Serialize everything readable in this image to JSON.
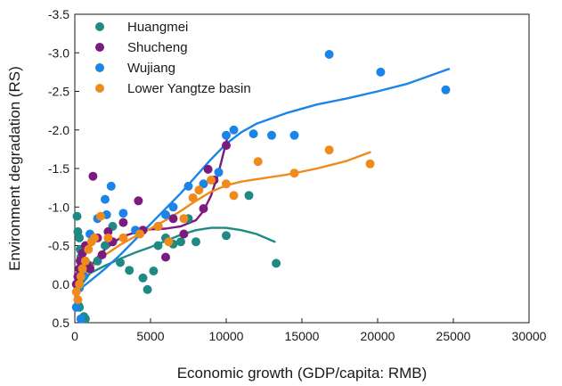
{
  "chart_data": {
    "type": "scatter",
    "title": "",
    "xlabel": "Economic growth (GDP/capita: RMB)",
    "ylabel": "Environment degradation (RS)",
    "xlim": [
      0,
      30000
    ],
    "ylim": [
      0.5,
      -3.5
    ],
    "y_axis_inverted": true,
    "x_ticks": [
      0,
      5000,
      10000,
      15000,
      20000,
      25000,
      30000
    ],
    "x_tick_labels": [
      "0",
      "5000",
      "10000",
      "15000",
      "20000",
      "25000",
      "30000"
    ],
    "y_ticks": [
      -3.5,
      -3.0,
      -2.5,
      -2.0,
      -1.5,
      -1.0,
      -0.5,
      0.0,
      0.5
    ],
    "y_tick_labels": [
      "-3.5",
      "-3.0",
      "-2.5",
      "-2.0",
      "-1.5",
      "-1.0",
      "-0.5",
      "0.0",
      "0.5"
    ],
    "grid": false,
    "legend_position": "top-left",
    "series": [
      {
        "name": "Huangmei",
        "color": "#1f8a84",
        "points": [
          [
            150,
            -0.88
          ],
          [
            200,
            -0.68
          ],
          [
            300,
            -0.6
          ],
          [
            350,
            -0.45
          ],
          [
            400,
            -0.35
          ],
          [
            500,
            -0.2
          ],
          [
            250,
            0.28
          ],
          [
            300,
            0.3
          ],
          [
            600,
            0.42
          ],
          [
            700,
            0.45
          ],
          [
            900,
            -0.25
          ],
          [
            1500,
            -0.3
          ],
          [
            2000,
            -0.5
          ],
          [
            2500,
            -0.75
          ],
          [
            3000,
            -0.28
          ],
          [
            3600,
            -0.18
          ],
          [
            4500,
            -0.08
          ],
          [
            4800,
            0.07
          ],
          [
            5200,
            -0.17
          ],
          [
            5500,
            -0.5
          ],
          [
            6000,
            -0.6
          ],
          [
            6500,
            -0.52
          ],
          [
            7000,
            -0.55
          ],
          [
            7500,
            -0.85
          ],
          [
            8000,
            -0.55
          ],
          [
            10000,
            -0.63
          ],
          [
            11500,
            -1.15
          ],
          [
            13300,
            -0.27
          ]
        ],
        "fit": [
          [
            100,
            0.1
          ],
          [
            1000,
            -0.14
          ],
          [
            2000,
            -0.24
          ],
          [
            3000,
            -0.33
          ],
          [
            4000,
            -0.41
          ],
          [
            5000,
            -0.48
          ],
          [
            6000,
            -0.56
          ],
          [
            7000,
            -0.64
          ],
          [
            8000,
            -0.7
          ],
          [
            9000,
            -0.73
          ],
          [
            10000,
            -0.73
          ],
          [
            11000,
            -0.7
          ],
          [
            12000,
            -0.65
          ],
          [
            13200,
            -0.55
          ]
        ]
      },
      {
        "name": "Shucheng",
        "color": "#7b1a7f",
        "points": [
          [
            100,
            0.0
          ],
          [
            200,
            -0.1
          ],
          [
            300,
            -0.2
          ],
          [
            350,
            -0.3
          ],
          [
            500,
            -0.4
          ],
          [
            700,
            -0.5
          ],
          [
            800,
            -0.25
          ],
          [
            1000,
            -0.2
          ],
          [
            1200,
            -1.4
          ],
          [
            1500,
            -0.6
          ],
          [
            1800,
            -0.38
          ],
          [
            2200,
            -0.68
          ],
          [
            2500,
            -0.55
          ],
          [
            3200,
            -0.8
          ],
          [
            4200,
            -1.08
          ],
          [
            4500,
            -0.7
          ],
          [
            5500,
            -0.75
          ],
          [
            6000,
            -0.35
          ],
          [
            6500,
            -0.85
          ],
          [
            7200,
            -0.65
          ],
          [
            8500,
            -0.98
          ],
          [
            8800,
            -1.49
          ],
          [
            9200,
            -1.35
          ],
          [
            10000,
            -1.8
          ]
        ],
        "fit": [
          [
            100,
            0.12
          ],
          [
            500,
            -0.05
          ],
          [
            1000,
            -0.22
          ],
          [
            1500,
            -0.35
          ],
          [
            2000,
            -0.45
          ],
          [
            2500,
            -0.53
          ],
          [
            3000,
            -0.6
          ],
          [
            3500,
            -0.64
          ],
          [
            4000,
            -0.67
          ],
          [
            4500,
            -0.7
          ],
          [
            5000,
            -0.71
          ],
          [
            6000,
            -0.72
          ],
          [
            7000,
            -0.75
          ],
          [
            8000,
            -0.83
          ],
          [
            8500,
            -0.95
          ],
          [
            9000,
            -1.15
          ],
          [
            9500,
            -1.45
          ],
          [
            10100,
            -1.92
          ]
        ]
      },
      {
        "name": "Wujiang",
        "color": "#1a85e6",
        "points": [
          [
            100,
            0.3
          ],
          [
            300,
            0.05
          ],
          [
            400,
            0.45
          ],
          [
            600,
            -0.1
          ],
          [
            1000,
            -0.65
          ],
          [
            1500,
            -0.85
          ],
          [
            2000,
            -1.1
          ],
          [
            2100,
            -0.9
          ],
          [
            2400,
            -1.27
          ],
          [
            3200,
            -0.92
          ],
          [
            4000,
            -0.7
          ],
          [
            6000,
            -0.9
          ],
          [
            6500,
            -1.0
          ],
          [
            7500,
            -1.27
          ],
          [
            8500,
            -1.3
          ],
          [
            9500,
            -1.45
          ],
          [
            10000,
            -1.93
          ],
          [
            10500,
            -2.0
          ],
          [
            11800,
            -1.95
          ],
          [
            13000,
            -1.93
          ],
          [
            14500,
            -1.93
          ],
          [
            16800,
            -2.98
          ],
          [
            20200,
            -2.75
          ],
          [
            24500,
            -2.52
          ]
        ],
        "fit": [
          [
            100,
            0.1
          ],
          [
            1000,
            -0.04
          ],
          [
            2000,
            -0.2
          ],
          [
            3000,
            -0.38
          ],
          [
            4000,
            -0.58
          ],
          [
            5000,
            -0.78
          ],
          [
            6000,
            -0.98
          ],
          [
            7000,
            -1.18
          ],
          [
            8000,
            -1.4
          ],
          [
            9000,
            -1.62
          ],
          [
            10000,
            -1.82
          ],
          [
            11000,
            -1.97
          ],
          [
            12000,
            -2.08
          ],
          [
            14000,
            -2.22
          ],
          [
            16000,
            -2.33
          ],
          [
            18000,
            -2.41
          ],
          [
            20000,
            -2.5
          ],
          [
            22000,
            -2.6
          ],
          [
            24700,
            -2.79
          ]
        ]
      },
      {
        "name": "Lower Yangtze basin",
        "color": "#f08a1a",
        "points": [
          [
            100,
            0.1
          ],
          [
            200,
            0.2
          ],
          [
            300,
            0.0
          ],
          [
            400,
            -0.1
          ],
          [
            500,
            -0.2
          ],
          [
            700,
            -0.3
          ],
          [
            900,
            -0.45
          ],
          [
            1100,
            -0.55
          ],
          [
            1300,
            -0.6
          ],
          [
            1700,
            -0.88
          ],
          [
            2200,
            -0.6
          ],
          [
            3200,
            -0.6
          ],
          [
            4300,
            -0.65
          ],
          [
            5500,
            -0.75
          ],
          [
            6200,
            -0.55
          ],
          [
            7200,
            -0.85
          ],
          [
            7800,
            -1.12
          ],
          [
            8200,
            -1.22
          ],
          [
            9000,
            -1.35
          ],
          [
            10000,
            -1.3
          ],
          [
            10500,
            -1.15
          ],
          [
            12100,
            -1.59
          ],
          [
            14500,
            -1.44
          ],
          [
            16800,
            -1.74
          ],
          [
            19500,
            -1.56
          ]
        ],
        "fit": [
          [
            100,
            0.12
          ],
          [
            500,
            -0.05
          ],
          [
            1000,
            -0.2
          ],
          [
            2000,
            -0.38
          ],
          [
            3000,
            -0.51
          ],
          [
            4000,
            -0.62
          ],
          [
            5000,
            -0.72
          ],
          [
            6000,
            -0.83
          ],
          [
            7000,
            -0.95
          ],
          [
            8000,
            -1.08
          ],
          [
            9000,
            -1.2
          ],
          [
            10000,
            -1.28
          ],
          [
            11000,
            -1.33
          ],
          [
            12000,
            -1.36
          ],
          [
            13000,
            -1.39
          ],
          [
            14000,
            -1.42
          ],
          [
            15000,
            -1.46
          ],
          [
            16000,
            -1.5
          ],
          [
            17000,
            -1.55
          ],
          [
            18000,
            -1.6
          ],
          [
            19500,
            -1.71
          ]
        ]
      }
    ]
  }
}
